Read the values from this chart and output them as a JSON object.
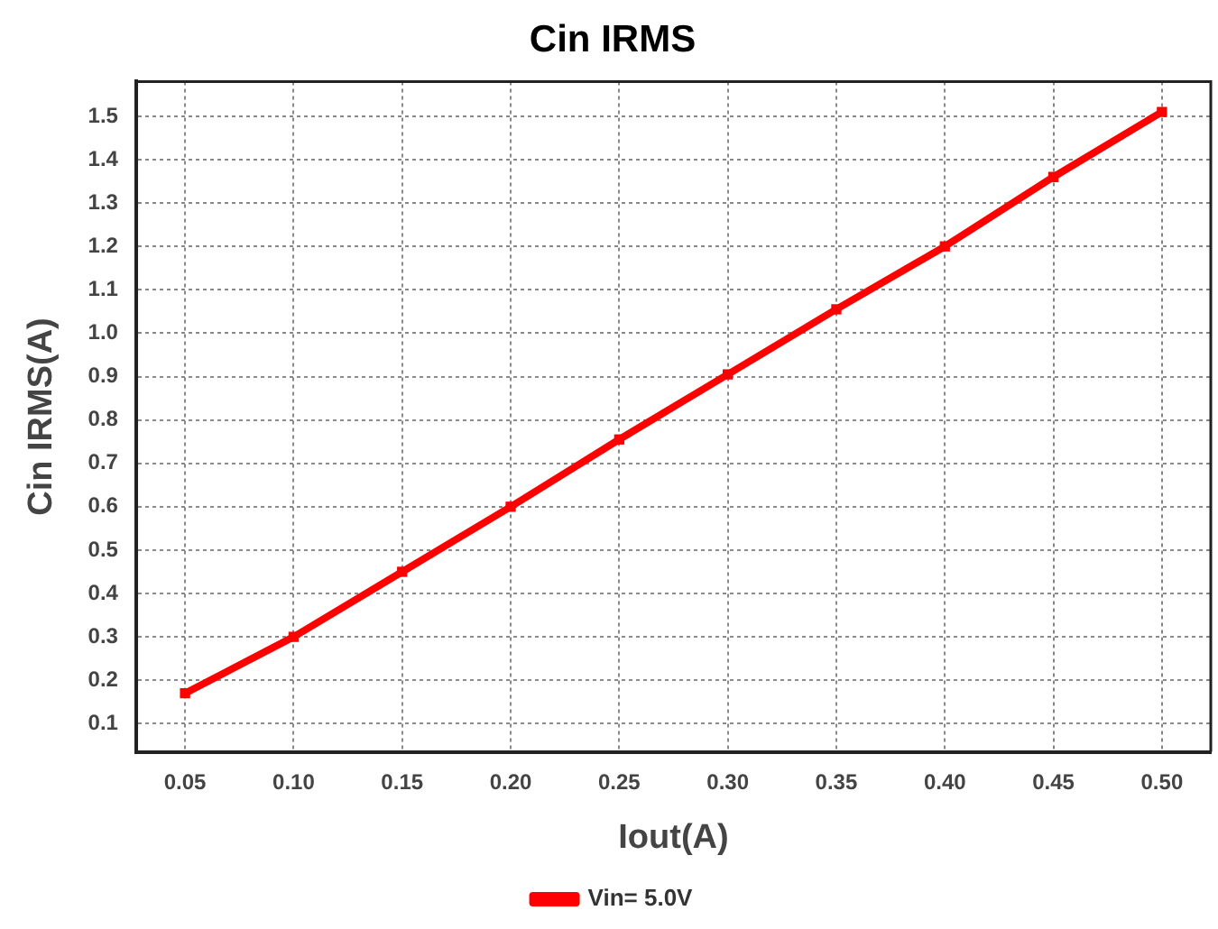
{
  "chart_data": {
    "type": "line",
    "title": "Cin IRMS",
    "xlabel": "Iout(A)",
    "ylabel": "Cin IRMS(A)",
    "x": [
      0.05,
      0.1,
      0.15,
      0.2,
      0.25,
      0.3,
      0.35,
      0.4,
      0.45,
      0.5
    ],
    "series": [
      {
        "name": "Vin= 5.0V",
        "color": "#ff0000",
        "values": [
          0.17,
          0.3,
          0.45,
          0.6,
          0.755,
          0.905,
          1.055,
          1.2,
          1.36,
          1.51
        ]
      }
    ],
    "xlim": [
      0.0275,
      0.5225
    ],
    "xticks": [
      {
        "value": 0.05,
        "label": "0.05"
      },
      {
        "value": 0.1,
        "label": "0.10"
      },
      {
        "value": 0.15,
        "label": "0.15"
      },
      {
        "value": 0.2,
        "label": "0.20"
      },
      {
        "value": 0.25,
        "label": "0.25"
      },
      {
        "value": 0.3,
        "label": "0.30"
      },
      {
        "value": 0.35,
        "label": "0.35"
      },
      {
        "value": 0.4,
        "label": "0.40"
      },
      {
        "value": 0.45,
        "label": "0.45"
      },
      {
        "value": 0.5,
        "label": "0.50"
      }
    ],
    "ylim": [
      0.035,
      1.58
    ],
    "yticks": [
      0.1,
      0.2,
      0.3,
      0.4,
      0.5,
      0.6,
      0.7,
      0.8,
      0.9,
      {
        "value": 1.0,
        "label": "1.0"
      },
      1.1,
      1.2,
      1.3,
      1.4,
      1.5
    ],
    "grid": true,
    "legend": "bottom",
    "marker": "square",
    "line_style": "solid"
  }
}
